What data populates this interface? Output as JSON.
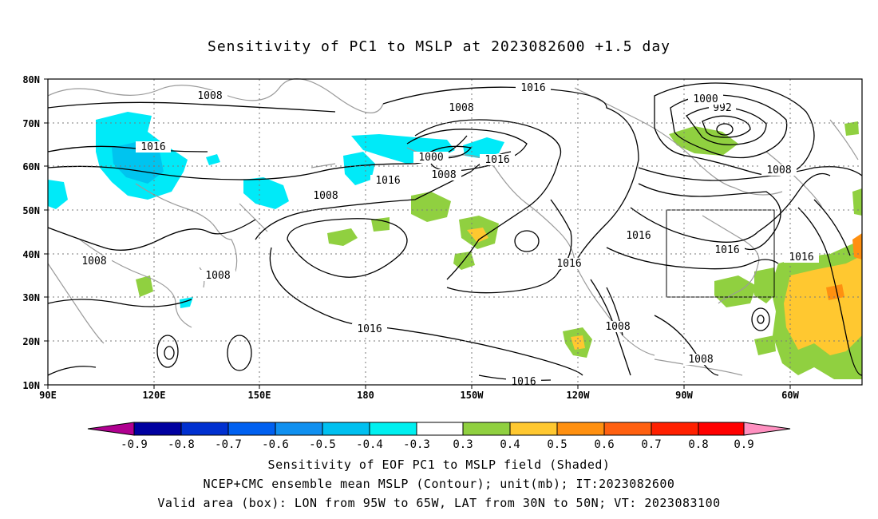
{
  "title": "Sensitivity of PC1 to MSLP at 2023082600 +1.5 day",
  "x_ticks": [
    "90E",
    "120E",
    "150E",
    "180",
    "150W",
    "120W",
    "90W",
    "60W"
  ],
  "y_ticks": [
    "80N",
    "70N",
    "60N",
    "50N",
    "40N",
    "30N",
    "20N",
    "10N"
  ],
  "contour_labels": [
    "1008",
    "1016",
    "1016",
    "1008",
    "1008",
    "1016",
    "1000",
    "992",
    "1008",
    "1008",
    "1000",
    "1008",
    "1016",
    "1016",
    "1016",
    "1016",
    "1016",
    "1016",
    "1008",
    "1008",
    "1008",
    "1016"
  ],
  "colorbar": {
    "labels": [
      "-0.9",
      "-0.8",
      "-0.7",
      "-0.6",
      "-0.5",
      "-0.4",
      "-0.3",
      "0.3",
      "0.4",
      "0.5",
      "0.6",
      "0.7",
      "0.8",
      "0.9"
    ],
    "colors": [
      "#b00090",
      "#0000a0",
      "#0030d0",
      "#0060f0",
      "#1090f0",
      "#00c0f0",
      "#00f0f0",
      "#ffffff",
      "#90d040",
      "#ffc830",
      "#ff9010",
      "#ff6010",
      "#ff2000",
      "#ff0000",
      "#ff90c0"
    ]
  },
  "captions": {
    "line1": "Sensitivity of EOF PC1 to MSLP field (Shaded)",
    "line2": "NCEP+CMC ensemble mean MSLP (Contour); unit(mb); IT:2023082600",
    "line3": "Valid area (box): LON from 95W to 65W, LAT from 30N to 50N; VT: 2023083100"
  },
  "valid_area": {
    "lon_min": -95,
    "lon_max": -65,
    "lat_min": 30,
    "lat_max": 50
  }
}
